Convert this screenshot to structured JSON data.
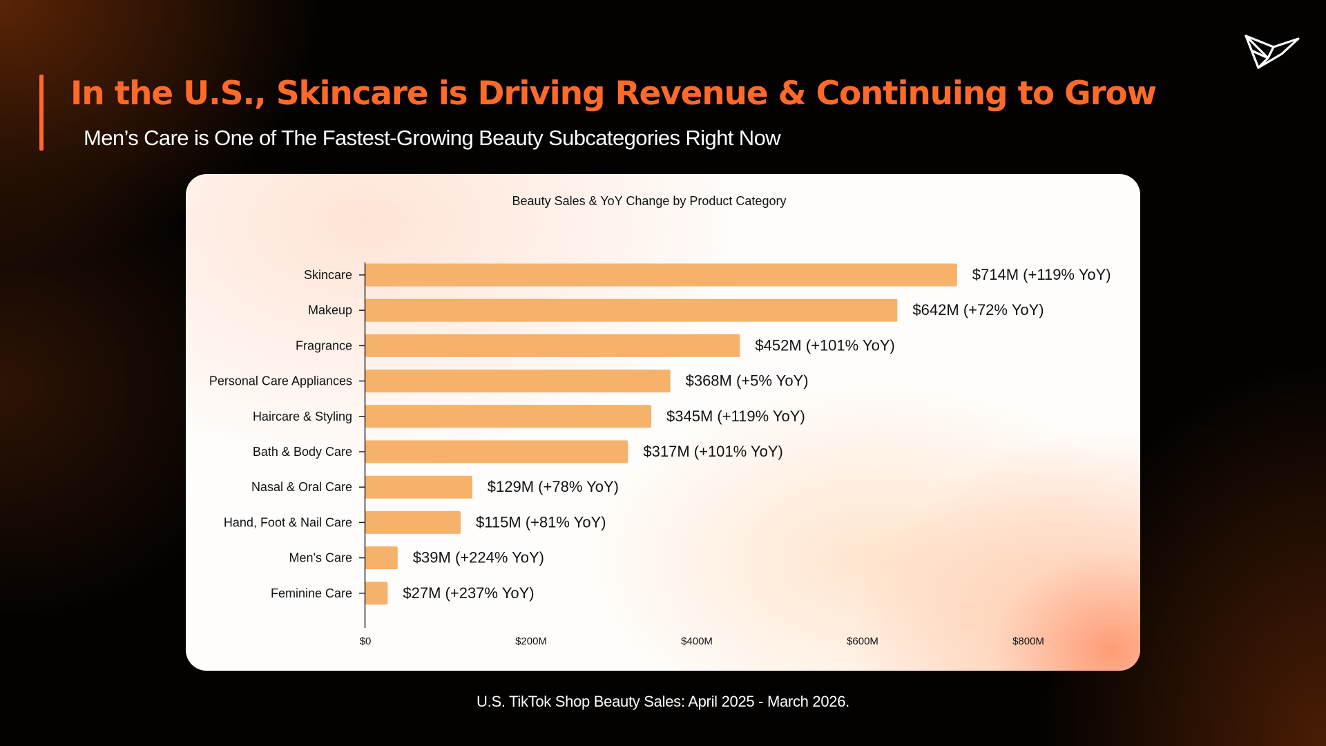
{
  "header": {
    "title": "In the U.S., Skincare is Driving Revenue & Continuing to Grow",
    "subtitle": "Men’s Care is One of The Fastest-Growing Beauty Subcategories Right Now"
  },
  "logo": {
    "icon": "paper-bird-logo-icon"
  },
  "chart_data": {
    "type": "bar",
    "orientation": "horizontal",
    "title": "Beauty Sales & YoY Change by Product Category",
    "xlabel": "",
    "ylabel": "",
    "xlim": [
      0,
      900
    ],
    "x_ticks": [
      {
        "value": 0,
        "label": "$0"
      },
      {
        "value": 200,
        "label": "$200M"
      },
      {
        "value": 400,
        "label": "$400M"
      },
      {
        "value": 600,
        "label": "$600M"
      },
      {
        "value": 800,
        "label": "$800M"
      }
    ],
    "grid": false,
    "bar_color": "#f6b26b",
    "categories": [
      "Skincare",
      "Makeup",
      "Fragrance",
      "Personal Care Appliances",
      "Haircare & Styling",
      "Bath & Body Care",
      "Nasal & Oral Care",
      "Hand, Foot & Nail Care",
      "Men's Care",
      "Feminine Care"
    ],
    "values": [
      714,
      642,
      452,
      368,
      345,
      317,
      129,
      115,
      39,
      27
    ],
    "data_labels": [
      "$714M (+119% YoY)",
      "$642M (+72% YoY)",
      "$452M (+101% YoY)",
      "$368M (+5% YoY)",
      "$345M (+119% YoY)",
      "$317M (+101% YoY)",
      "$129M (+78% YoY)",
      "$115M (+81% YoY)",
      "$39M (+224% YoY)",
      "$27M (+237% YoY)"
    ]
  },
  "footnote": "U.S. TikTok Shop Beauty Sales: April 2025 - March 2026.",
  "colors": {
    "accent": "#ff6a2b",
    "bar": "#f6b26b",
    "background": "#030201"
  }
}
